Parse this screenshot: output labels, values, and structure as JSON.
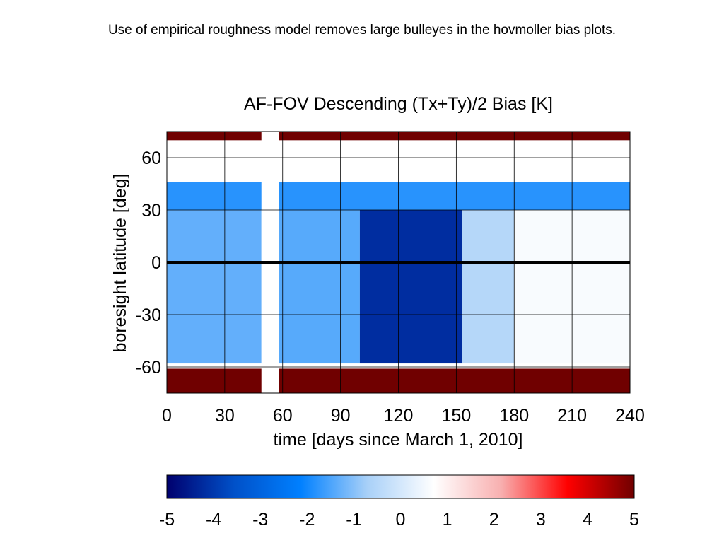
{
  "slide": {
    "title": "Use of empirical roughness model removes large bulleyes in the hovmoller bias plots."
  },
  "chart_data": {
    "type": "heatmap",
    "title": "AF-FOV Descending (Tx+Ty)/2 Bias [K]",
    "xlabel": "time [days since March 1, 2010]",
    "ylabel": "boresight latitude [deg]",
    "xlim": [
      0,
      240
    ],
    "ylim": [
      -75,
      75
    ],
    "xticks": [
      0,
      30,
      60,
      90,
      120,
      150,
      180,
      210,
      240
    ],
    "yticks": [
      -60,
      -30,
      0,
      30,
      60
    ],
    "grid": true,
    "zero_line": 0,
    "data_gap_days": [
      49,
      58
    ],
    "colorbar": {
      "min": -5,
      "max": 5,
      "ticks": [
        -5,
        -4,
        -3,
        -2,
        -1,
        0,
        1,
        2,
        3,
        4,
        5
      ],
      "colors": [
        "#00006e",
        "#0050c8",
        "#0080ff",
        "#a8d0f8",
        "#ffffff",
        "#f8b0b0",
        "#ff0000",
        "#700000"
      ]
    },
    "regions": [
      {
        "days": [
          0,
          49
        ],
        "lat": [
          -58,
          30
        ],
        "bias": -1.3
      },
      {
        "days": [
          58,
          100
        ],
        "lat": [
          -58,
          30
        ],
        "bias": -1.4
      },
      {
        "days": [
          100,
          153
        ],
        "lat": [
          -58,
          30
        ],
        "bias": -4.2
      },
      {
        "days": [
          153,
          180
        ],
        "lat": [
          -58,
          30
        ],
        "bias": -0.5
      },
      {
        "days": [
          180,
          240
        ],
        "lat": [
          -58,
          30
        ],
        "bias": 0.6
      },
      {
        "days": [
          0,
          240
        ],
        "lat": [
          30,
          46
        ],
        "bias": -1.8
      },
      {
        "days": [
          0,
          240
        ],
        "lat": [
          -75,
          -61
        ],
        "bias": 5.0
      },
      {
        "days": [
          0,
          240
        ],
        "lat": [
          70,
          75
        ],
        "bias": 5.0
      }
    ]
  }
}
